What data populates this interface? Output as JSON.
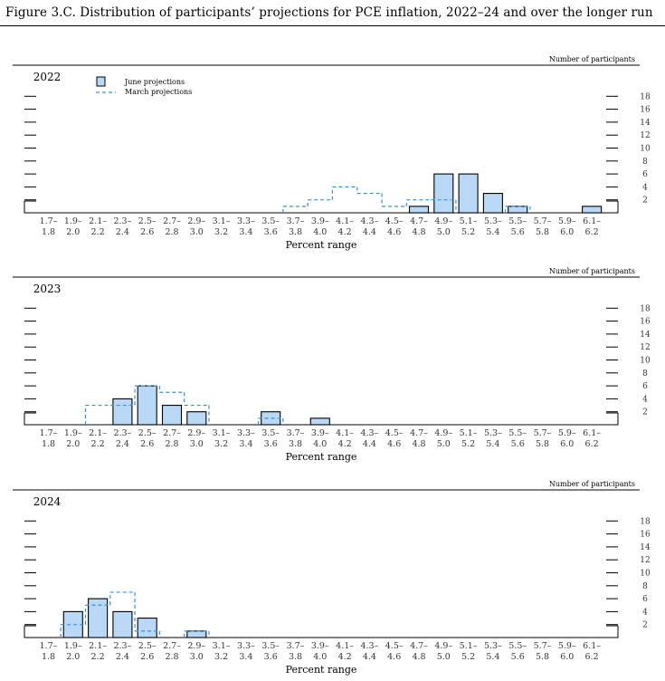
{
  "figure": {
    "title": "Figure 3.C. Distribution of participants’ projections for PCE inflation, 2022–24 and over the longer run"
  },
  "legend": {
    "june": "June projections",
    "march": "March projections"
  },
  "colors": {
    "bar_fill": "#b9d8f5",
    "bar_stroke": "#000000",
    "march_line": "#3d8fd1"
  },
  "chart_data": [
    {
      "type": "bar",
      "panel": "2022",
      "ylabel": "Number of participants",
      "xlabel": "Percent range",
      "categories": [
        "1.7– 1.8",
        "1.9– 2.0",
        "2.1– 2.2",
        "2.3– 2.4",
        "2.5– 2.6",
        "2.7– 2.8",
        "2.9– 3.0",
        "3.1– 3.2",
        "3.3– 3.4",
        "3.5– 3.6",
        "3.7– 3.8",
        "3.9– 4.0",
        "4.1– 4.2",
        "4.3– 4.4",
        "4.5– 4.6",
        "4.7– 4.8",
        "4.9– 5.0",
        "5.1– 5.2",
        "5.3– 5.4",
        "5.5– 5.6",
        "5.7– 5.8",
        "5.9– 6.0",
        "6.1– 6.2"
      ],
      "x_top": [
        "1.7–",
        "1.9–",
        "2.1–",
        "2.3–",
        "2.5–",
        "2.7–",
        "2.9–",
        "3.1–",
        "3.3–",
        "3.5–",
        "3.7–",
        "3.9–",
        "4.1–",
        "4.3–",
        "4.5–",
        "4.7–",
        "4.9–",
        "5.1–",
        "5.3–",
        "5.5–",
        "5.7–",
        "5.9–",
        "6.1–"
      ],
      "x_bottom": [
        "1.8",
        "2.0",
        "2.2",
        "2.4",
        "2.6",
        "2.8",
        "3.0",
        "3.2",
        "3.4",
        "3.6",
        "3.8",
        "4.0",
        "4.2",
        "4.4",
        "4.6",
        "4.8",
        "5.0",
        "5.2",
        "5.4",
        "5.6",
        "5.8",
        "6.0",
        "6.2"
      ],
      "yticks": [
        2,
        4,
        6,
        8,
        10,
        12,
        14,
        16,
        18
      ],
      "ylim": [
        0,
        18
      ],
      "series": [
        {
          "name": "June projections",
          "values": [
            0,
            0,
            0,
            0,
            0,
            0,
            0,
            0,
            0,
            0,
            0,
            0,
            0,
            0,
            0,
            1,
            6,
            6,
            3,
            1,
            0,
            0,
            1
          ]
        },
        {
          "name": "March projections",
          "values": [
            0,
            0,
            0,
            0,
            0,
            0,
            0,
            0,
            0,
            0,
            1,
            2,
            4,
            3,
            1,
            2,
            2,
            0,
            0,
            1,
            0,
            0,
            0
          ]
        }
      ],
      "legend_position": "top-left"
    },
    {
      "type": "bar",
      "panel": "2023",
      "ylabel": "Number of participants",
      "xlabel": "Percent range",
      "categories": [
        "1.7– 1.8",
        "1.9– 2.0",
        "2.1– 2.2",
        "2.3– 2.4",
        "2.5– 2.6",
        "2.7– 2.8",
        "2.9– 3.0",
        "3.1– 3.2",
        "3.3– 3.4",
        "3.5– 3.6",
        "3.7– 3.8",
        "3.9– 4.0",
        "4.1– 4.2",
        "4.3– 4.4",
        "4.5– 4.6",
        "4.7– 4.8",
        "4.9– 5.0",
        "5.1– 5.2",
        "5.3– 5.4",
        "5.5– 5.6",
        "5.7– 5.8",
        "5.9– 6.0",
        "6.1– 6.2"
      ],
      "x_top": [
        "1.7–",
        "1.9–",
        "2.1–",
        "2.3–",
        "2.5–",
        "2.7–",
        "2.9–",
        "3.1–",
        "3.3–",
        "3.5–",
        "3.7–",
        "3.9–",
        "4.1–",
        "4.3–",
        "4.5–",
        "4.7–",
        "4.9–",
        "5.1–",
        "5.3–",
        "5.5–",
        "5.7–",
        "5.9–",
        "6.1–"
      ],
      "x_bottom": [
        "1.8",
        "2.0",
        "2.2",
        "2.4",
        "2.6",
        "2.8",
        "3.0",
        "3.2",
        "3.4",
        "3.6",
        "3.8",
        "4.0",
        "4.2",
        "4.4",
        "4.6",
        "4.8",
        "5.0",
        "5.2",
        "5.4",
        "5.6",
        "5.8",
        "6.0",
        "6.2"
      ],
      "yticks": [
        2,
        4,
        6,
        8,
        10,
        12,
        14,
        16,
        18
      ],
      "ylim": [
        0,
        18
      ],
      "series": [
        {
          "name": "June projections",
          "values": [
            0,
            0,
            0,
            4,
            6,
            3,
            2,
            0,
            0,
            2,
            0,
            1,
            0,
            0,
            0,
            0,
            0,
            0,
            0,
            0,
            0,
            0,
            0
          ]
        },
        {
          "name": "March projections",
          "values": [
            0,
            0,
            3,
            3,
            6,
            5,
            3,
            0,
            0,
            1,
            0,
            0,
            0,
            0,
            0,
            0,
            0,
            0,
            0,
            0,
            0,
            0,
            0
          ]
        }
      ]
    },
    {
      "type": "bar",
      "panel": "2024",
      "ylabel": "Number of participants",
      "xlabel": "Percent range",
      "categories": [
        "1.7– 1.8",
        "1.9– 2.0",
        "2.1– 2.2",
        "2.3– 2.4",
        "2.5– 2.6",
        "2.7– 2.8",
        "2.9– 3.0",
        "3.1– 3.2",
        "3.3– 3.4",
        "3.5– 3.6",
        "3.7– 3.8",
        "3.9– 4.0",
        "4.1– 4.2",
        "4.3– 4.4",
        "4.5– 4.6",
        "4.7– 4.8",
        "4.9– 5.0",
        "5.1– 5.2",
        "5.3– 5.4",
        "5.5– 5.6",
        "5.7– 5.8",
        "5.9– 6.0",
        "6.1– 6.2"
      ],
      "x_top": [
        "1.7–",
        "1.9–",
        "2.1–",
        "2.3–",
        "2.5–",
        "2.7–",
        "2.9–",
        "3.1–",
        "3.3–",
        "3.5–",
        "3.7–",
        "3.9–",
        "4.1–",
        "4.3–",
        "4.5–",
        "4.7–",
        "4.9–",
        "5.1–",
        "5.3–",
        "5.5–",
        "5.7–",
        "5.9–",
        "6.1–"
      ],
      "x_bottom": [
        "1.8",
        "2.0",
        "2.2",
        "2.4",
        "2.6",
        "2.8",
        "3.0",
        "3.2",
        "3.4",
        "3.6",
        "3.8",
        "4.0",
        "4.2",
        "4.4",
        "4.6",
        "4.8",
        "5.0",
        "5.2",
        "5.4",
        "5.6",
        "5.8",
        "6.0",
        "6.2"
      ],
      "yticks": [
        2,
        4,
        6,
        8,
        10,
        12,
        14,
        16,
        18
      ],
      "ylim": [
        0,
        18
      ],
      "series": [
        {
          "name": "June projections",
          "values": [
            0,
            4,
            6,
            4,
            3,
            0,
            1,
            0,
            0,
            0,
            0,
            0,
            0,
            0,
            0,
            0,
            0,
            0,
            0,
            0,
            0,
            0,
            0
          ]
        },
        {
          "name": "March projections",
          "values": [
            0,
            2,
            5,
            7,
            1,
            0,
            1,
            0,
            0,
            0,
            0,
            0,
            0,
            0,
            0,
            0,
            0,
            0,
            0,
            0,
            0,
            0,
            0
          ]
        }
      ]
    }
  ]
}
